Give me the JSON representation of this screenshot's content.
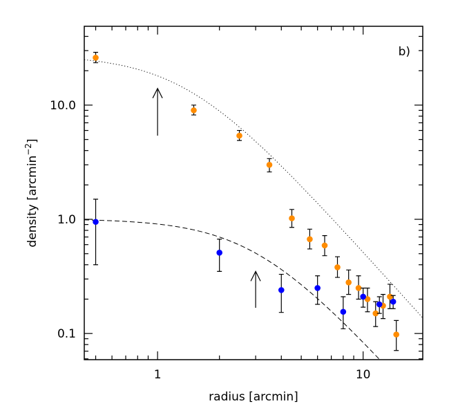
{
  "chart_data": {
    "type": "scatter",
    "panel_label": "b)",
    "xlabel": "radius [arcmin]",
    "ylabel_main": "density [arcmin",
    "ylabel_sup": "−2",
    "ylabel_close": "]",
    "xscale": "log",
    "yscale": "log",
    "xlim": [
      0.44,
      19.5
    ],
    "ylim": [
      0.059,
      49
    ],
    "x_tick_labels": [
      {
        "value": 1,
        "label": "1"
      },
      {
        "value": 10,
        "label": "10"
      }
    ],
    "y_tick_labels": [
      {
        "value": 0.1,
        "label": "0.1"
      },
      {
        "value": 1,
        "label": "1.0"
      },
      {
        "value": 10,
        "label": "10.0"
      }
    ],
    "series": [
      {
        "color": "#ff8c00",
        "points": [
          {
            "x": 0.5,
            "y": 26.0,
            "lo": 23.5,
            "hi": 29.0
          },
          {
            "x": 1.5,
            "y": 9.0,
            "lo": 8.2,
            "hi": 10.0
          },
          {
            "x": 2.5,
            "y": 5.4,
            "lo": 4.9,
            "hi": 6.0
          },
          {
            "x": 3.5,
            "y": 3.0,
            "lo": 2.6,
            "hi": 3.4
          },
          {
            "x": 4.5,
            "y": 1.02,
            "lo": 0.85,
            "hi": 1.22
          },
          {
            "x": 5.5,
            "y": 0.67,
            "lo": 0.55,
            "hi": 0.82
          },
          {
            "x": 6.5,
            "y": 0.59,
            "lo": 0.48,
            "hi": 0.72
          },
          {
            "x": 7.5,
            "y": 0.38,
            "lo": 0.31,
            "hi": 0.47
          },
          {
            "x": 8.5,
            "y": 0.28,
            "lo": 0.22,
            "hi": 0.36
          },
          {
            "x": 9.5,
            "y": 0.25,
            "lo": 0.2,
            "hi": 0.32
          },
          {
            "x": 10.5,
            "y": 0.2,
            "lo": 0.155,
            "hi": 0.25
          },
          {
            "x": 11.5,
            "y": 0.15,
            "lo": 0.115,
            "hi": 0.19
          },
          {
            "x": 12.5,
            "y": 0.175,
            "lo": 0.135,
            "hi": 0.22
          },
          {
            "x": 13.5,
            "y": 0.21,
            "lo": 0.165,
            "hi": 0.27
          },
          {
            "x": 14.5,
            "y": 0.098,
            "lo": 0.071,
            "hi": 0.13
          }
        ]
      },
      {
        "color": "#0000ff",
        "points": [
          {
            "x": 0.5,
            "y": 0.95,
            "lo": 0.4,
            "hi": 1.5
          },
          {
            "x": 2.0,
            "y": 0.51,
            "lo": 0.35,
            "hi": 0.67
          },
          {
            "x": 4.0,
            "y": 0.24,
            "lo": 0.153,
            "hi": 0.33
          },
          {
            "x": 6.0,
            "y": 0.25,
            "lo": 0.18,
            "hi": 0.32
          },
          {
            "x": 8.0,
            "y": 0.155,
            "lo": 0.11,
            "hi": 0.21
          },
          {
            "x": 10.0,
            "y": 0.21,
            "lo": 0.17,
            "hi": 0.25
          },
          {
            "x": 12.0,
            "y": 0.18,
            "lo": 0.15,
            "hi": 0.21
          },
          {
            "x": 14.0,
            "y": 0.19,
            "lo": 0.165,
            "hi": 0.215
          }
        ]
      }
    ],
    "fit_curves": [
      {
        "style": "dotted",
        "norm": 27.5,
        "rc": 1.38
      },
      {
        "style": "dashed",
        "norm": 1.01,
        "rc": 3.0
      }
    ],
    "arrows": [
      {
        "x": 1.0,
        "y_from": 5.4,
        "y_to": 14.0
      },
      {
        "x": 3.0,
        "y_from": 0.168,
        "y_to": 0.35
      }
    ]
  }
}
